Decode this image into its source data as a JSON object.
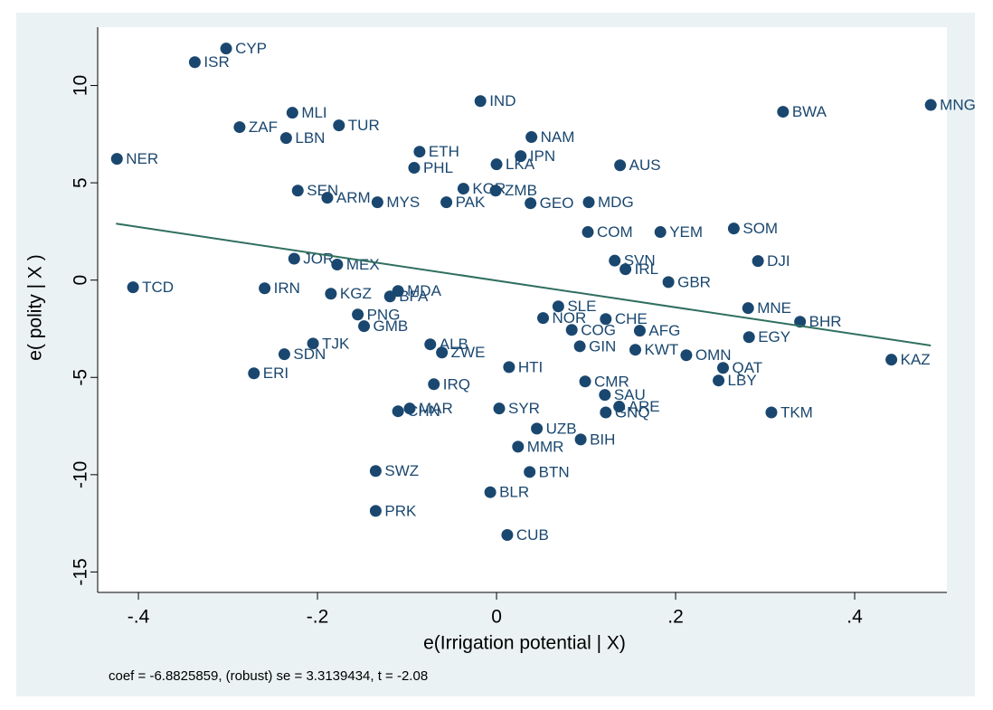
{
  "chart_data": {
    "type": "scatter",
    "xlabel": "e(Irrigation potential | X)",
    "ylabel": "e( polity | X )",
    "note": "coef = -6.8825859, (robust) se = 3.3139434, t = -2.08",
    "color": "#1a476f",
    "fit_color": "#2f6f5f",
    "xlim": [
      -0.4455,
      0.503
    ],
    "ylim": [
      -16.05,
      13.0
    ],
    "xticks": [
      {
        "value": -0.4,
        "label": "-.4"
      },
      {
        "value": -0.2,
        "label": "-.2"
      },
      0,
      {
        "value": 0.2,
        "label": ".2"
      },
      {
        "value": 0.4,
        "label": ".4"
      }
    ],
    "yticks": [
      -15,
      -10,
      -5,
      0,
      5,
      10
    ],
    "fit": {
      "x": [
        -0.425,
        0.485
      ],
      "y": [
        2.9,
        -3.36
      ]
    },
    "labels": [
      "CYP",
      "ISR",
      "MNG",
      "IND",
      "MLI",
      "BWA",
      "ZAF",
      "TUR",
      "LBN",
      "NAM",
      "NER",
      "IPN",
      "AUS",
      "PHL",
      "LKA",
      "ETH",
      "SEN",
      "ARM",
      "KOR",
      "ZMB",
      "PAK",
      "MYS",
      "GEO",
      "MDG",
      "YEM",
      "SOM",
      "COM",
      "DJI",
      "SVN",
      "IRL",
      "GBR",
      "JOR",
      "MEX",
      "TCD",
      "IRN",
      "KGZ",
      "MDA",
      "BFA",
      "PNG",
      "GMB",
      "SLE",
      "NOR",
      "CHE",
      "COG",
      "AFG",
      "GIN",
      "MNE",
      "BHR",
      "EGY",
      "OMN",
      "KWT",
      "KAZ",
      "QAT",
      "LBY",
      "TJK",
      "SDN",
      "ERI",
      "ALB",
      "ZWE",
      "IRQ",
      "CMR",
      "HTI",
      "SAU",
      "ARE",
      "GNQ",
      "MAR",
      "CHN",
      "SYR",
      "TKM",
      "UZB",
      "BIH",
      "MMR",
      "BTN",
      "SWZ",
      "BLR",
      "PRK",
      "CUB"
    ],
    "x": [
      -0.302,
      -0.337,
      0.485,
      -0.018,
      -0.228,
      0.32,
      -0.287,
      -0.176,
      -0.235,
      0.039,
      -0.424,
      0.027,
      0.138,
      -0.092,
      0.0,
      -0.086,
      -0.222,
      -0.189,
      -0.037,
      -0.001,
      -0.056,
      -0.133,
      0.038,
      0.103,
      0.183,
      0.265,
      0.102,
      0.292,
      0.132,
      0.144,
      0.192,
      -0.226,
      -0.178,
      -0.406,
      -0.259,
      -0.185,
      -0.11,
      -0.119,
      -0.155,
      -0.148,
      0.069,
      0.052,
      0.122,
      0.084,
      0.16,
      0.093,
      0.281,
      0.339,
      0.282,
      0.212,
      0.155,
      0.441,
      0.253,
      0.248,
      -0.205,
      -0.237,
      -0.271,
      -0.074,
      -0.061,
      -0.07,
      0.099,
      0.014,
      0.121,
      0.137,
      0.122,
      -0.097,
      -0.11,
      0.003,
      0.307,
      0.045,
      0.094,
      0.024,
      0.037,
      -0.135,
      -0.007,
      -0.135,
      0.012
    ],
    "y": [
      11.9,
      11.2,
      9.0,
      9.2,
      8.6,
      8.65,
      7.86,
      7.95,
      7.3,
      7.35,
      6.23,
      6.37,
      5.9,
      5.77,
      5.95,
      6.6,
      4.6,
      4.23,
      4.7,
      4.6,
      4.0,
      4.0,
      3.95,
      4.0,
      2.47,
      2.65,
      2.47,
      0.98,
      1.0,
      0.56,
      -0.1,
      1.1,
      0.8,
      -0.37,
      -0.42,
      -0.7,
      -0.56,
      -0.84,
      -1.77,
      -2.37,
      -1.35,
      -1.95,
      -2.0,
      -2.56,
      -2.6,
      -3.4,
      -1.44,
      -2.14,
      -2.93,
      -3.86,
      -3.58,
      -4.09,
      -4.51,
      -5.16,
      -3.26,
      -3.81,
      -4.79,
      -3.3,
      -3.72,
      -5.35,
      -5.21,
      -4.47,
      -5.9,
      -6.5,
      -6.8,
      -6.6,
      -6.74,
      -6.6,
      -6.8,
      -7.63,
      -8.19,
      -8.56,
      -9.86,
      -9.81,
      -10.9,
      -11.86,
      -13.1
    ]
  }
}
